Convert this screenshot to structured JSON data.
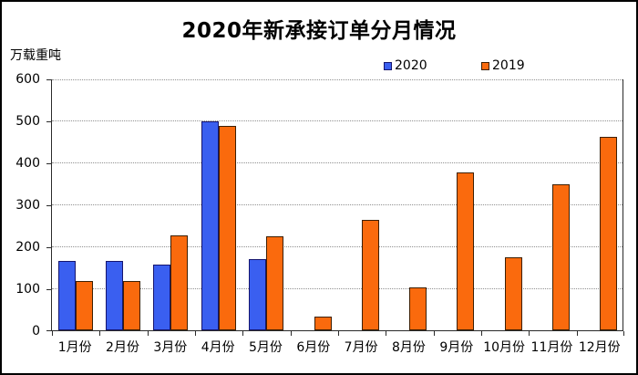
{
  "title": "2020年新承接订单分月情况",
  "y_axis_unit": "万载重吨",
  "chart_data": {
    "type": "bar",
    "title": "2020年新承接订单分月情况",
    "ylabel": "万载重吨",
    "xlabel": "",
    "ylim": [
      0,
      600
    ],
    "yticks": [
      0,
      100,
      200,
      300,
      400,
      500,
      600
    ],
    "grid": "horizontal-dotted",
    "legend_position": "top-center",
    "categories": [
      "1月份",
      "2月份",
      "3月份",
      "4月份",
      "5月份",
      "6月份",
      "7月份",
      "8月份",
      "9月份",
      "10月份",
      "11月份",
      "12月份"
    ],
    "series": [
      {
        "name": "2020",
        "color": "#3a5ff0",
        "border_color": "#15156e",
        "values": [
          166,
          166,
          157,
          497,
          170,
          null,
          null,
          null,
          null,
          null,
          null,
          null
        ]
      },
      {
        "name": "2019",
        "color": "#fa6a0d",
        "border_color": "#3d1f02",
        "values": [
          117,
          117,
          225,
          487,
          224,
          33,
          264,
          103,
          375,
          173,
          347,
          460
        ]
      }
    ]
  }
}
